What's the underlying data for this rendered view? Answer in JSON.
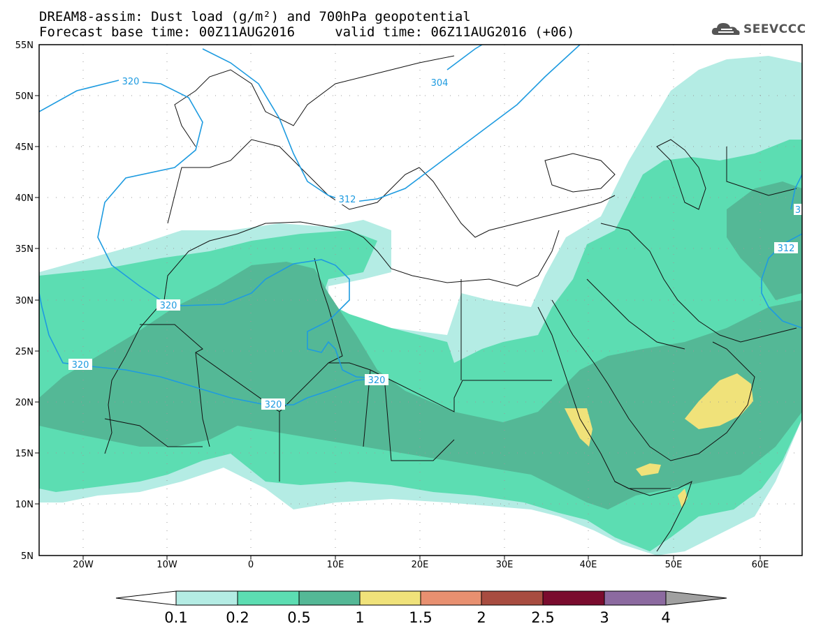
{
  "header": {
    "title_line1": "DREAM8-assim: Dust load (g/m²) and 700hPa geopotential",
    "title_line2": "Forecast base time: 00Z11AUG2016     valid time: 06Z11AUG2016 (+06)",
    "logo_text": "SEEVCCC",
    "logo_icon": "cloud-icon"
  },
  "map": {
    "lat_labels": [
      "55N",
      "50N",
      "45N",
      "40N",
      "35N",
      "30N",
      "25N",
      "20N",
      "15N",
      "10N",
      "5N"
    ],
    "lon_labels": [
      "20W",
      "10W",
      "0",
      "10E",
      "20E",
      "30E",
      "40E",
      "50E",
      "60E"
    ],
    "contour_labels": [
      "320",
      "304",
      "312",
      "320",
      "320",
      "320",
      "320",
      "312",
      "3"
    ]
  },
  "colorbar": {
    "labels": [
      "0.1",
      "0.2",
      "0.5",
      "1",
      "1.5",
      "2",
      "2.5",
      "3",
      "4"
    ],
    "colors": [
      "#b4ece4",
      "#5cddb2",
      "#54b896",
      "#f0e27a",
      "#e89070",
      "#a84c40",
      "#7a0c2e",
      "#8c6aa0",
      "#a0a0a0"
    ]
  },
  "colors": {
    "contour": "#1e9be0",
    "border": "#111111"
  }
}
